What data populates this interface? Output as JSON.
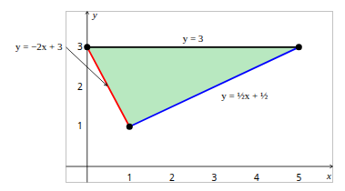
{
  "chart_data": {
    "type": "polygon",
    "xlabel": "x",
    "ylabel": "y",
    "color": "#b8e8c0",
    "xlim": [
      -0.5,
      5.8
    ],
    "ylim": [
      -0.4,
      3.9
    ],
    "xticks": [
      1,
      2,
      3,
      4,
      5
    ],
    "yticks": [
      1,
      2,
      3
    ],
    "vertices": {
      "x": [
        0,
        5,
        1
      ],
      "y": [
        3,
        3,
        1
      ],
      "color": "black",
      "marker": "circle"
    },
    "series": [
      {
        "name": "y = 3",
        "color": "black",
        "x": [
          0,
          5
        ],
        "y": [
          3,
          3
        ]
      },
      {
        "name": "y = −2x + 3",
        "color": "red",
        "x": [
          0,
          1
        ],
        "y": [
          3,
          1
        ]
      },
      {
        "name": "y = ½x + ½",
        "color": "blue",
        "x": [
          1,
          5
        ],
        "y": [
          1,
          3
        ]
      }
    ]
  }
}
